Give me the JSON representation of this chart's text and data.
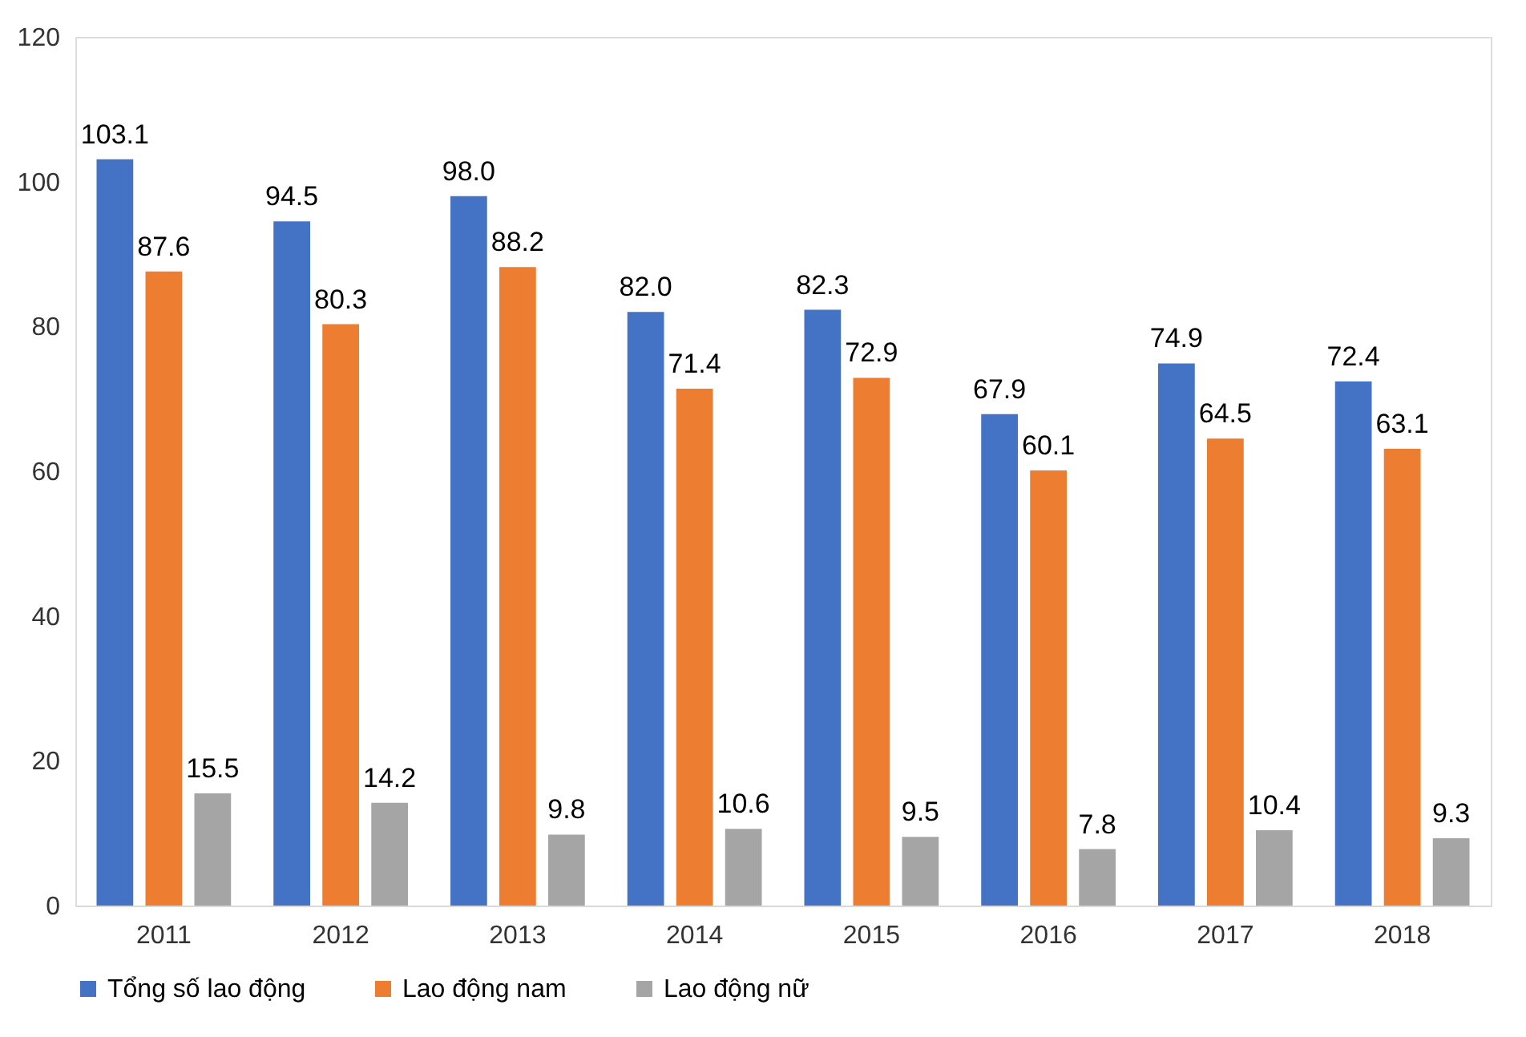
{
  "chart_data": {
    "type": "bar",
    "categories": [
      "2011",
      "2012",
      "2013",
      "2014",
      "2015",
      "2016",
      "2017",
      "2018"
    ],
    "series": [
      {
        "name": "Tổng số lao động",
        "color": "#4472c4",
        "values": [
          103.1,
          94.5,
          98.0,
          82.0,
          82.3,
          67.9,
          74.9,
          72.4
        ],
        "value_labels": [
          "103.1",
          "94.5",
          "98.0",
          "82.0",
          "82.3",
          "67.9",
          "74.9",
          "72.4"
        ]
      },
      {
        "name": "Lao động nam",
        "color": "#ed7d31",
        "values": [
          87.6,
          80.3,
          88.2,
          71.4,
          72.9,
          60.1,
          64.5,
          63.1
        ],
        "value_labels": [
          "87.6",
          "80.3",
          "88.2",
          "71.4",
          "72.9",
          "60.1",
          "64.5",
          "63.1"
        ]
      },
      {
        "name": "Lao động nữ",
        "color": "#a5a5a5",
        "values": [
          15.5,
          14.2,
          9.8,
          10.6,
          9.5,
          7.8,
          10.4,
          9.3
        ],
        "value_labels": [
          "15.5",
          "14.2",
          "9.8",
          "10.6",
          "9.5",
          "7.8",
          "10.4",
          "9.3"
        ]
      }
    ],
    "ylim": [
      0,
      120
    ],
    "yticks": [
      0,
      20,
      40,
      60,
      80,
      100,
      120
    ],
    "legend": "bottom"
  }
}
